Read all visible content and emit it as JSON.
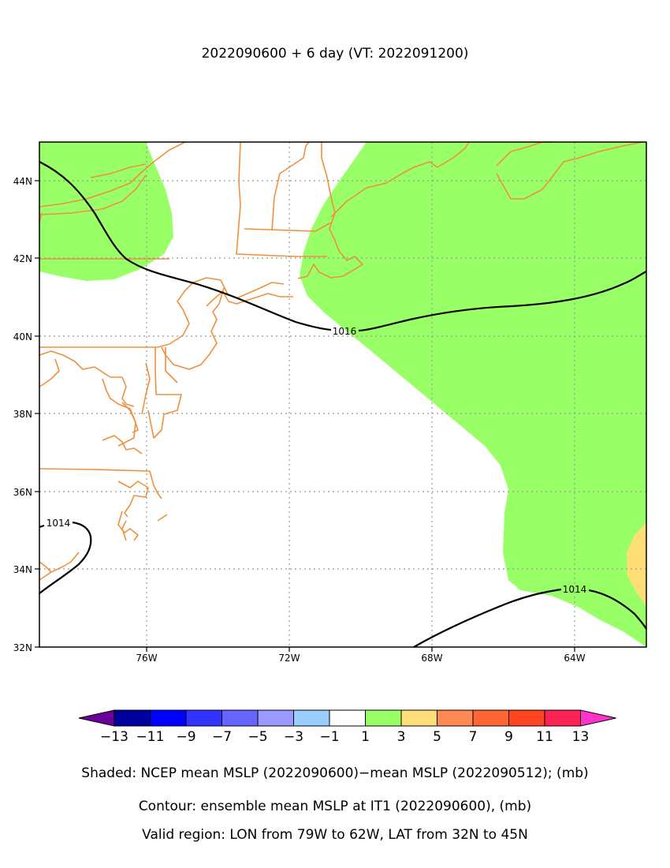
{
  "title": "2022090600 + 6 day (VT: 2022091200)",
  "map": {
    "lon_ticks": [
      "76W",
      "72W",
      "68W",
      "64W"
    ],
    "lat_ticks": [
      "44N",
      "42N",
      "40N",
      "38N",
      "36N",
      "34N",
      "32N"
    ],
    "grid": "dotted",
    "contours": [
      {
        "value": "1016"
      },
      {
        "value": "1014"
      },
      {
        "value": "1014"
      }
    ],
    "shade_colors": {
      "band_1_3": "#99ff66",
      "band_3_5": "#ffdd77"
    },
    "coastline_color": "#f0903c"
  },
  "colorbar": {
    "labels": [
      "−13",
      "−11",
      "−9",
      "−7",
      "−5",
      "−3",
      "−1",
      "1",
      "3",
      "5",
      "7",
      "9",
      "11",
      "13"
    ],
    "colors": [
      "#6a0099",
      "#00009e",
      "#0000ff",
      "#3333ff",
      "#6666ff",
      "#9999ff",
      "#99ccff",
      "#ffffff",
      "#99ff66",
      "#ffdd77",
      "#ff8855",
      "#ff6633",
      "#ff4422",
      "#ff2255",
      "#ff33cc"
    ]
  },
  "captions": {
    "shaded": "Shaded: NCEP mean MSLP (2022090600)−mean MSLP (2022090512); (mb)",
    "contour": "Contour: ensemble mean MSLP at IT1 (2022090600), (mb)",
    "region": "Valid region: LON from 79W to 62W, LAT from 32N to 45N"
  }
}
